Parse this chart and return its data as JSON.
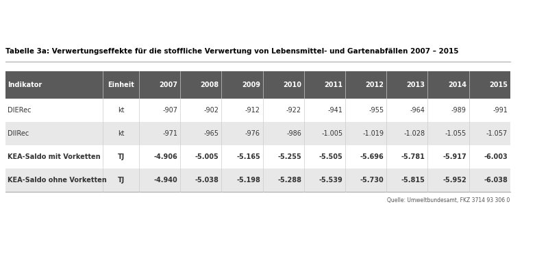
{
  "title": "Tabelle 3a: Verwertungseffekte für die stoffliche Verwertung von Lebensmittel- und Gartenabfällen 2007 – 2015",
  "source": "Quelle: Umweltbundesamt, FKZ 3714 93 306 0",
  "columns": [
    "Indikator",
    "Einheit",
    "2007",
    "2008",
    "2009",
    "2010",
    "2011",
    "2012",
    "2013",
    "2014",
    "2015"
  ],
  "rows": [
    [
      "DIERec",
      "kt",
      "-907",
      "-902",
      "-912",
      "-922",
      "-941",
      "-955",
      "-964",
      "-989",
      "-991"
    ],
    [
      "DIIRec",
      "kt",
      "-971",
      "-965",
      "-976",
      "-986",
      "-1.005",
      "-1.019",
      "-1.028",
      "-1.055",
      "-1.057"
    ],
    [
      "KEA-Saldo mit Vorketten",
      "TJ",
      "-4.906",
      "-5.005",
      "-5.165",
      "-5.255",
      "-5.505",
      "-5.696",
      "-5.781",
      "-5.917",
      "-6.003"
    ],
    [
      "KEA-Saldo ohne Vorketten",
      "TJ",
      "-4.940",
      "-5.038",
      "-5.198",
      "-5.288",
      "-5.539",
      "-5.730",
      "-5.815",
      "-5.952",
      "-6.038"
    ]
  ],
  "header_bg": "#5a5a5a",
  "header_text": "#ffffff",
  "row_bg_odd": "#ffffff",
  "row_bg_even": "#e8e8e8",
  "bold_rows": [
    2,
    3
  ],
  "title_fontsize": 7.5,
  "header_fontsize": 7,
  "cell_fontsize": 7,
  "source_fontsize": 5.5
}
